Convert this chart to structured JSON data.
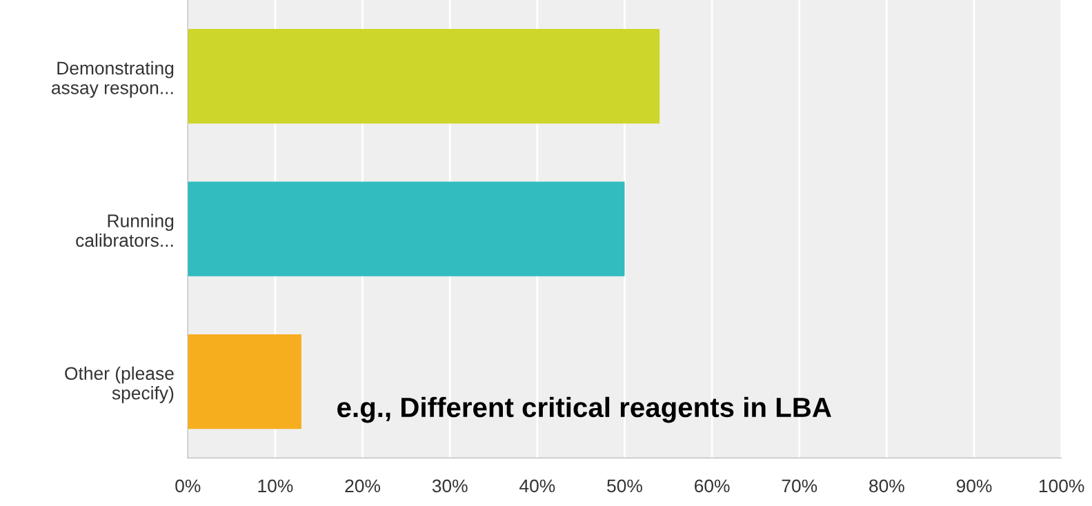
{
  "chart_data": {
    "type": "bar",
    "orientation": "horizontal",
    "categories": [
      "Demonstrating\nassay respon...",
      "Running\ncalibrators...",
      "Other (please\nspecify)"
    ],
    "values": [
      54,
      50,
      13
    ],
    "colors": [
      "#cdd62a",
      "#33bcbf",
      "#f6ae1f"
    ],
    "xlim": [
      0,
      100
    ],
    "xticks": [
      {
        "value": 0,
        "label": "0%"
      },
      {
        "value": 10,
        "label": "10%"
      },
      {
        "value": 20,
        "label": "20%"
      },
      {
        "value": 30,
        "label": "30%"
      },
      {
        "value": 40,
        "label": "40%"
      },
      {
        "value": 50,
        "label": "50%"
      },
      {
        "value": 60,
        "label": "60%"
      },
      {
        "value": 70,
        "label": "70%"
      },
      {
        "value": 80,
        "label": "80%"
      },
      {
        "value": 90,
        "label": "90%"
      },
      {
        "value": 100,
        "label": "100%"
      }
    ],
    "grid": "x",
    "annotations": [
      "e.g., Different critical reagents in LBA"
    ]
  }
}
